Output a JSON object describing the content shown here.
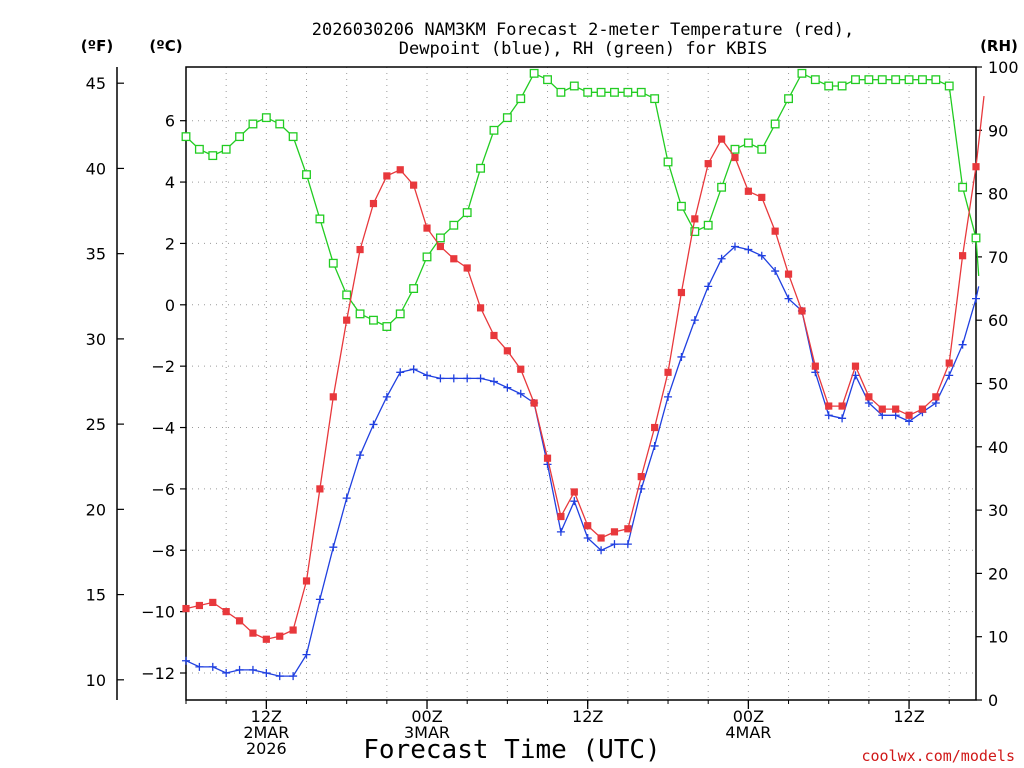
{
  "title_line1": "2026030206 NAM3KM Forecast 2-meter Temperature (red),",
  "title_line2": "Dewpoint (blue), RH (green) for KBIS",
  "units": {
    "fahrenheit": "(ºF)",
    "celsius": "(ºC)",
    "rh": "(RH)"
  },
  "x_axis_label": "Forecast Time (UTC)",
  "credit": "coolwx.com/models",
  "x_ticks": [
    {
      "hour": 12,
      "lines": [
        "12Z",
        "2MAR",
        "2026"
      ]
    },
    {
      "hour": 24,
      "lines": [
        "00Z",
        "3MAR"
      ]
    },
    {
      "hour": 36,
      "lines": [
        "12Z"
      ]
    },
    {
      "hour": 48,
      "lines": [
        "00Z",
        "4MAR"
      ]
    },
    {
      "hour": 60,
      "lines": [
        "12Z"
      ]
    }
  ],
  "chart_data": {
    "type": "line",
    "x_unit": "forecast hour from 2026-03-02 00Z",
    "x_range": [
      6,
      65
    ],
    "x": [
      6,
      7,
      8,
      9,
      10,
      11,
      12,
      13,
      14,
      15,
      16,
      17,
      18,
      19,
      20,
      21,
      22,
      23,
      24,
      25,
      26,
      27,
      28,
      29,
      30,
      31,
      32,
      33,
      34,
      35,
      36,
      37,
      38,
      39,
      40,
      41,
      42,
      43,
      44,
      45,
      46,
      47,
      48,
      49,
      50,
      51,
      52,
      53,
      54,
      55,
      56,
      57,
      58,
      59,
      60,
      61,
      62,
      63,
      64,
      65
    ],
    "series": [
      {
        "name": "Temperature",
        "color": "#e8383c",
        "marker": "filled-square",
        "axis": "celsius",
        "values": [
          -9.9,
          -9.8,
          -9.7,
          -10.0,
          -10.3,
          -10.7,
          -10.9,
          -10.8,
          -10.6,
          -9.0,
          -6.0,
          -3.0,
          -0.5,
          1.8,
          3.3,
          4.2,
          4.4,
          3.9,
          2.5,
          1.9,
          1.5,
          1.2,
          -0.1,
          -1.0,
          -1.5,
          -2.1,
          -3.2,
          -5.0,
          -6.9,
          -6.1,
          -7.2,
          -7.6,
          -7.4,
          -7.3,
          -5.6,
          -4.0,
          -2.2,
          0.4,
          2.8,
          4.6,
          5.4,
          4.8,
          3.7,
          3.5,
          2.4,
          1.0,
          -0.2,
          -2.0,
          -3.3,
          -3.3,
          -2.0,
          -3.0,
          -3.4,
          -3.4,
          -3.6,
          -3.4,
          -3.0,
          -1.9,
          1.6,
          4.5
        ],
        "extra": {
          "x": [
            65.6
          ],
          "values": [
            6.8
          ]
        }
      },
      {
        "name": "Dewpoint",
        "color": "#2040e0",
        "marker": "plus",
        "axis": "celsius",
        "values": [
          -11.6,
          -11.8,
          -11.8,
          -12.0,
          -11.9,
          -11.9,
          -12.0,
          -12.1,
          -12.1,
          -11.4,
          -9.6,
          -7.9,
          -6.3,
          -4.9,
          -3.9,
          -3.0,
          -2.2,
          -2.1,
          -2.3,
          -2.4,
          -2.4,
          -2.4,
          -2.4,
          -2.5,
          -2.7,
          -2.9,
          -3.2,
          -5.2,
          -7.4,
          -6.4,
          -7.6,
          -8.0,
          -7.8,
          -7.8,
          -6.0,
          -4.6,
          -3.0,
          -1.7,
          -0.5,
          0.6,
          1.5,
          1.9,
          1.8,
          1.6,
          1.1,
          0.2,
          -0.2,
          -2.2,
          -3.6,
          -3.7,
          -2.3,
          -3.2,
          -3.6,
          -3.6,
          -3.8,
          -3.5,
          -3.2,
          -2.3,
          -1.3,
          0.2
        ],
        "extra": {
          "x": [
            65.2
          ],
          "values": [
            0.6
          ]
        }
      },
      {
        "name": "RH",
        "color": "#22cc22",
        "marker": "open-square",
        "axis": "rh",
        "values": [
          89,
          87,
          86,
          87,
          89,
          91,
          92,
          91,
          89,
          83,
          76,
          69,
          64,
          61,
          60,
          59,
          61,
          65,
          70,
          73,
          75,
          77,
          84,
          90,
          92,
          95,
          99,
          98,
          96,
          97,
          96,
          96,
          96,
          96,
          96,
          95,
          85,
          78,
          74,
          75,
          81,
          87,
          88,
          87,
          91,
          95,
          99,
          98,
          97,
          97,
          98,
          98,
          98,
          98,
          98,
          98,
          98,
          97,
          81,
          73
        ],
        "extra": {
          "x": [
            65.2
          ],
          "values": [
            67
          ]
        }
      }
    ],
    "celsius_range": [
      -12.88,
      7.75
    ],
    "celsius_ticks": [
      6,
      4,
      2,
      0,
      -2,
      -4,
      -6,
      -8,
      -10,
      -12
    ],
    "fahrenheit_ticks": [
      45,
      40,
      35,
      30,
      25,
      20,
      15,
      10
    ],
    "rh_range": [
      0,
      100
    ],
    "rh_ticks": [
      100,
      90,
      80,
      70,
      60,
      50,
      40,
      30,
      20,
      10,
      0
    ],
    "grid": true
  }
}
